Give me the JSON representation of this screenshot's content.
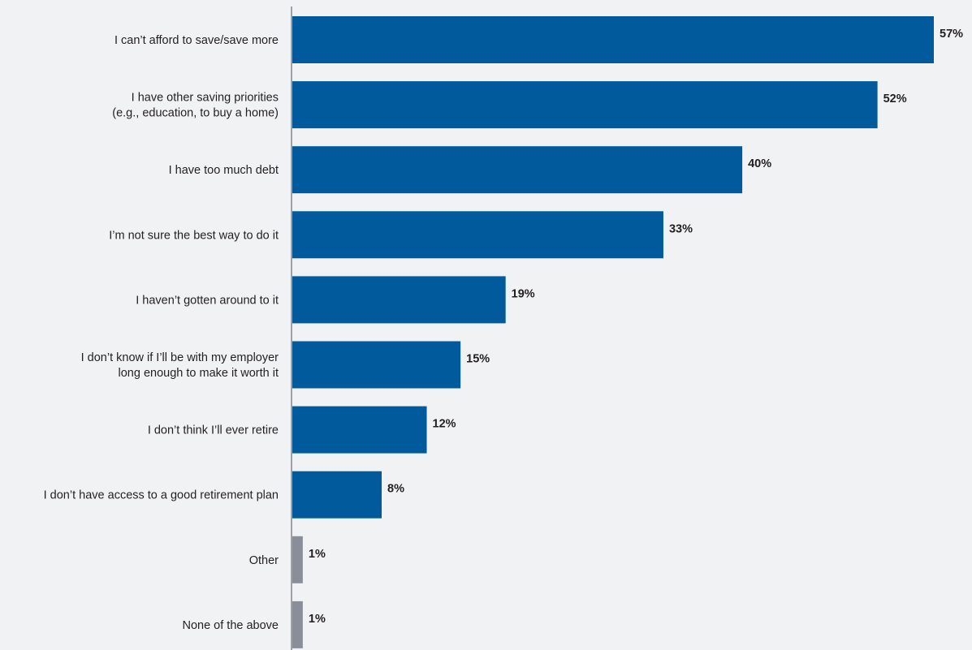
{
  "chart_data": {
    "type": "bar",
    "orientation": "horizontal",
    "title": "",
    "xlabel": "",
    "ylabel": "",
    "xlim": [
      0,
      60
    ],
    "grid": false,
    "legend": "none",
    "categories": [
      [
        "I can’t afford to save/save more"
      ],
      [
        "I have other saving priorities",
        "(e.g., education, to buy a home)"
      ],
      [
        "I have too much debt"
      ],
      [
        "I’m not sure the best way to do it"
      ],
      [
        "I haven’t gotten around to it"
      ],
      [
        "I don’t know if I’ll be with my employer",
        "long enough to make it worth it"
      ],
      [
        "I don’t think I’ll ever retire"
      ],
      [
        "I don’t have access to a good retirement plan"
      ],
      [
        "Other"
      ],
      [
        "None of the above"
      ]
    ],
    "values": [
      57,
      52,
      40,
      33,
      19,
      15,
      12,
      8,
      1,
      1
    ],
    "value_labels": [
      "57%",
      "52%",
      "40%",
      "33%",
      "19%",
      "15%",
      "12%",
      "8%",
      "1%",
      "1%"
    ],
    "bar_colors": [
      "#005a9c",
      "#005a9c",
      "#005a9c",
      "#005a9c",
      "#005a9c",
      "#005a9c",
      "#005a9c",
      "#005a9c",
      "#8a8e98",
      "#8a8e98"
    ],
    "axis_color": "#9ea1a6",
    "text_color": "#231f20"
  }
}
